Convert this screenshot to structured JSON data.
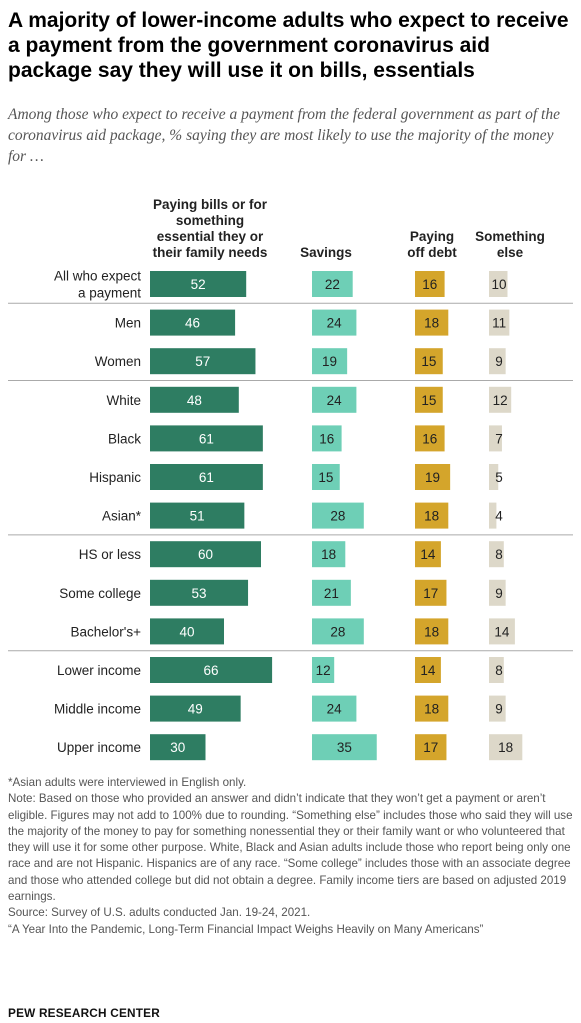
{
  "title": "A majority of lower-income adults who expect to receive a payment from the government coronavirus aid package say they will use it on bills, essentials",
  "subtitle": "Among those who expect to receive a payment from the federal government as part of the coronavirus aid package, % saying they are most likely to use the majority of the money for …",
  "notes": [
    "*Asian adults were interviewed in English only.",
    "Note: Based on those who provided an answer and didn’t indicate that they won’t get a payment or aren’t eligible. Figures may not add to 100% due to rounding. “Something else” includes those who said they will use the majority of the money to pay for something nonessential they or their family want or who volunteered that they will use it for some other purpose. White, Black and Asian adults include those who report being only one race and are not Hispanic. Hispanics are of any race. “Some college” includes those with an associate degree and those who attended college but did not obtain a degree. Family income tiers are based on adjusted 2019 earnings.",
    "Source: Survey of U.S. adults conducted Jan. 19-24, 2021.",
    "“A Year Into the Pandemic, Long-Term Financial Impact Weighs Heavily on Many Americans”"
  ],
  "brand": "PEW RESEARCH CENTER",
  "colors": {
    "bills": "#2e7d62",
    "savings": "#6ecfb6",
    "debt": "#d4a52b",
    "else": "#ddd8c9",
    "divider": "#aaaaaa"
  },
  "chart_data": {
    "type": "bar",
    "orientation": "horizontal",
    "categories": [
      "All who expect a payment",
      "Men",
      "Women",
      "White",
      "Black",
      "Hispanic",
      "Asian*",
      "HS or less",
      "Some college",
      "Bachelor's+",
      "Lower income",
      "Middle income",
      "Upper income"
    ],
    "category_lines": [
      [
        "All who expect",
        "a payment"
      ],
      [
        "Men"
      ],
      [
        "Women"
      ],
      [
        "White"
      ],
      [
        "Black"
      ],
      [
        "Hispanic"
      ],
      [
        "Asian*"
      ],
      [
        "HS or less"
      ],
      [
        "Some college"
      ],
      [
        "Bachelor's+"
      ],
      [
        "Lower income"
      ],
      [
        "Middle income"
      ],
      [
        "Upper income"
      ]
    ],
    "groups": [
      [
        0
      ],
      [
        1,
        2
      ],
      [
        3,
        4,
        5,
        6
      ],
      [
        7,
        8,
        9
      ],
      [
        10,
        11,
        12
      ]
    ],
    "series": [
      {
        "name": "Paying bills or for something essential they or their family needs",
        "header_lines": [
          "Paying bills or for",
          "something",
          "essential they or",
          "their family needs"
        ],
        "values": [
          52,
          46,
          57,
          48,
          61,
          61,
          51,
          60,
          53,
          40,
          66,
          49,
          30
        ]
      },
      {
        "name": "Savings",
        "header_lines": [
          "Savings"
        ],
        "values": [
          22,
          24,
          19,
          24,
          16,
          15,
          28,
          18,
          21,
          28,
          12,
          24,
          35
        ]
      },
      {
        "name": "Paying off debt",
        "header_lines": [
          "Paying",
          "off debt"
        ],
        "values": [
          16,
          18,
          15,
          15,
          16,
          19,
          18,
          14,
          17,
          18,
          14,
          18,
          17
        ]
      },
      {
        "name": "Something else",
        "header_lines": [
          "Something",
          "else"
        ],
        "values": [
          10,
          11,
          9,
          12,
          7,
          5,
          4,
          8,
          9,
          14,
          8,
          9,
          18
        ]
      }
    ],
    "xlim": [
      0,
      100
    ],
    "grid": false,
    "legend": "column headers"
  }
}
